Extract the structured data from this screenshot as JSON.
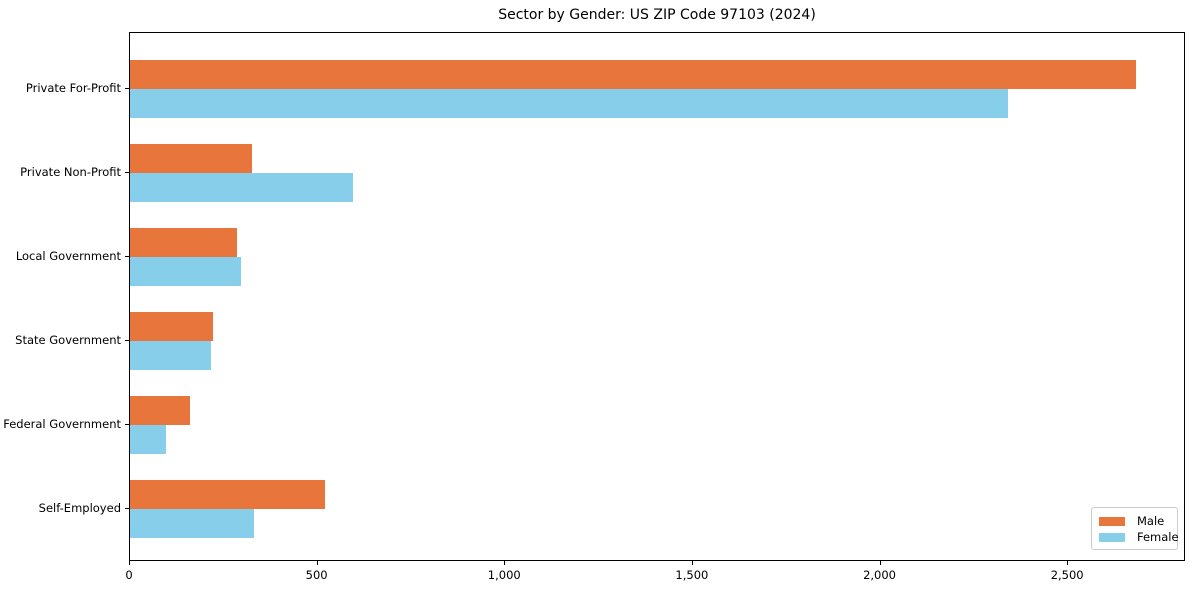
{
  "chart_data": {
    "type": "bar",
    "orientation": "horizontal",
    "title": "Sector by Gender: US ZIP Code 97103 (2024)",
    "categories": [
      "Private For-Profit",
      "Private Non-Profit",
      "Local Government",
      "State Government",
      "Federal Government",
      "Self-Employed"
    ],
    "series": [
      {
        "name": "Male",
        "color": "#e8763c",
        "values": [
          2680,
          325,
          285,
          220,
          160,
          520
        ]
      },
      {
        "name": "Female",
        "color": "#87ceeb",
        "values": [
          2340,
          595,
          295,
          215,
          95,
          330
        ]
      }
    ],
    "xlabel": "",
    "ylabel": "",
    "xlim": [
      0,
      2814
    ],
    "xticks": {
      "values": [
        0,
        500,
        1000,
        1500,
        2000,
        2500
      ],
      "labels": [
        "0",
        "500",
        "1,000",
        "1,500",
        "2,000",
        "2,500"
      ]
    },
    "legend": {
      "position": "lower right",
      "entries": [
        "Male",
        "Female"
      ]
    },
    "grid": false,
    "colors": {
      "male": "#e8763c",
      "female": "#87ceeb",
      "spine": "#000000",
      "background": "#ffffff",
      "legend_border": "#cccccc"
    }
  }
}
